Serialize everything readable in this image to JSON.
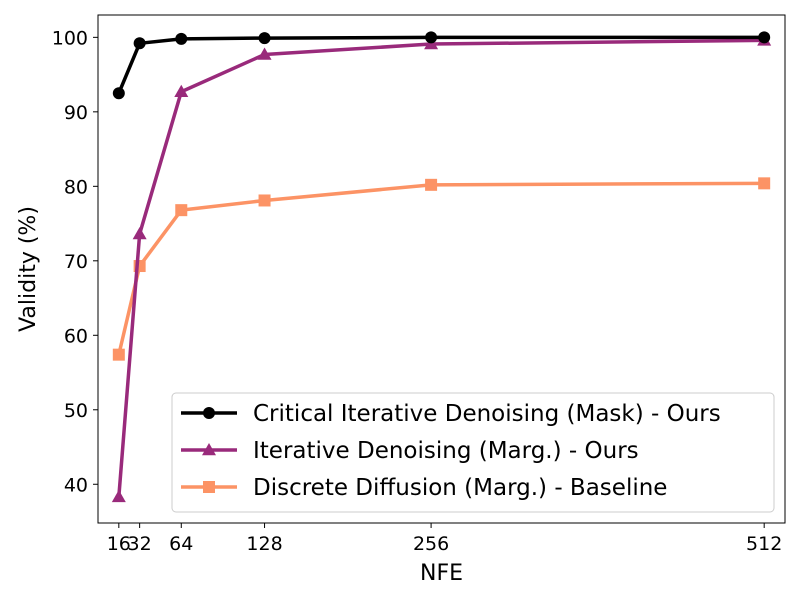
{
  "chart_data": {
    "type": "line",
    "title": "",
    "xlabel": "NFE",
    "ylabel": "Validity (%)",
    "x_ticks": [
      16,
      32,
      64,
      128,
      256,
      512
    ],
    "x_tick_labels": [
      "16",
      "32",
      "64",
      "128",
      "256",
      "512"
    ],
    "y_ticks": [
      40,
      50,
      60,
      70,
      80,
      90,
      100
    ],
    "y_tick_labels": [
      "40",
      "50",
      "60",
      "70",
      "80",
      "90",
      "100"
    ],
    "xlim": [
      0,
      528
    ],
    "ylim": [
      34.8,
      103.0
    ],
    "grid": false,
    "legend_position": "lower-right",
    "x": [
      16,
      32,
      64,
      128,
      256,
      512
    ],
    "series": [
      {
        "name": "Critical Iterative Denoising (Mask) - Ours",
        "marker": "circle",
        "color": "#000000",
        "values": [
          92.5,
          99.2,
          99.8,
          99.9,
          100.0,
          100.0
        ]
      },
      {
        "name": "Iterative Denoising (Marg.) - Ours",
        "marker": "triangle",
        "color": "#992a7b",
        "values": [
          38.3,
          73.6,
          92.7,
          97.7,
          99.1,
          99.6
        ]
      },
      {
        "name": "Discrete Diffusion (Marg.) - Baseline",
        "marker": "square",
        "color": "#fc9365",
        "values": [
          57.4,
          69.3,
          76.8,
          78.1,
          80.2,
          80.4
        ]
      }
    ]
  }
}
